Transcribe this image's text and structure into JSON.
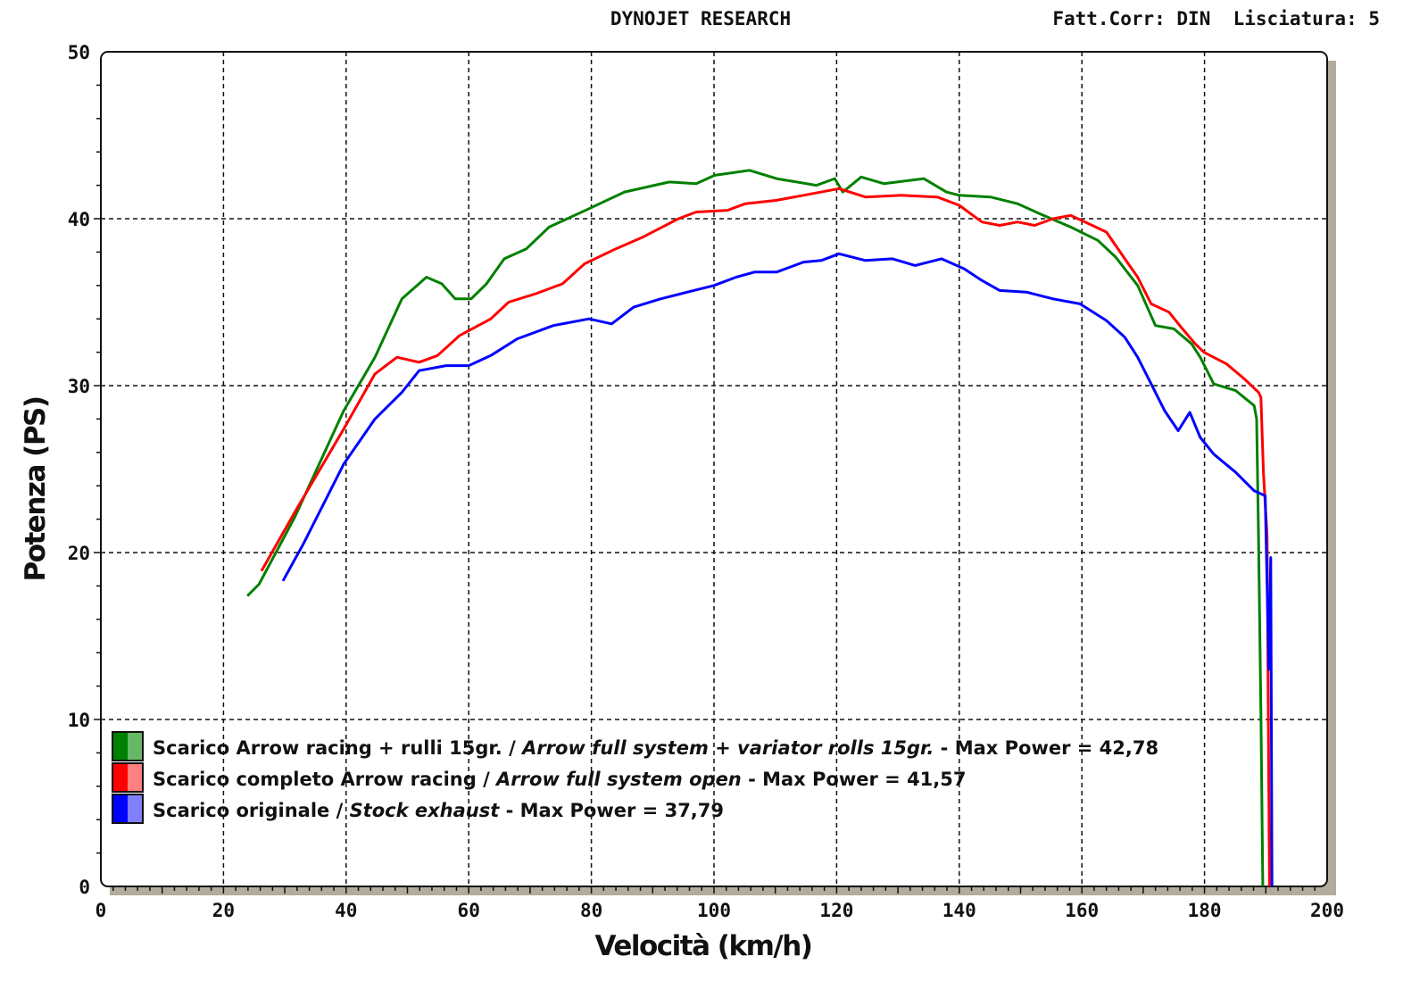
{
  "header": {
    "title": "DYNOJET RESEARCH",
    "settings": "Fatt.Corr: DIN  Lisciatura: 5"
  },
  "chart_data": {
    "type": "line",
    "xlabel": "Velocità (km/h)",
    "ylabel": "Potenza (PS)",
    "xlim": [
      0,
      200
    ],
    "ylim": [
      0,
      50
    ],
    "xticks": [
      "0",
      "20",
      "40",
      "60",
      "80",
      "100",
      "120",
      "140",
      "160",
      "180",
      "200"
    ],
    "yticks": [
      "0",
      "10",
      "20",
      "30",
      "40",
      "50"
    ],
    "grid": true,
    "legend_position": "bottom-left",
    "series": [
      {
        "name_it": "Scarico Arrow racing + rulli 15gr. / ",
        "name_en": "Arrow full system + variator rolls 15gr.",
        "max_label": " - Max Power = 42,78",
        "color": "#008000",
        "color_light": "#66b866",
        "points": [
          [
            23.9,
            17.4
          ],
          [
            25.8,
            18.1
          ],
          [
            31.6,
            22.1
          ],
          [
            39.6,
            28.5
          ],
          [
            44.7,
            31.7
          ],
          [
            49.1,
            35.2
          ],
          [
            53.1,
            36.5
          ],
          [
            55.6,
            36.1
          ],
          [
            57.8,
            35.2
          ],
          [
            60.4,
            35.2
          ],
          [
            62.9,
            36.1
          ],
          [
            65.8,
            37.6
          ],
          [
            69.4,
            38.2
          ],
          [
            73.1,
            39.5
          ],
          [
            79.6,
            40.6
          ],
          [
            85.4,
            41.6
          ],
          [
            92.7,
            42.2
          ],
          [
            97.1,
            42.1
          ],
          [
            100.1,
            42.6
          ],
          [
            105.8,
            42.9
          ],
          [
            110.2,
            42.4
          ],
          [
            116.7,
            42.0
          ],
          [
            119.7,
            42.4
          ],
          [
            121,
            41.6
          ],
          [
            124,
            42.5
          ],
          [
            127.7,
            42.1
          ],
          [
            134.2,
            42.4
          ],
          [
            137.9,
            41.6
          ],
          [
            140,
            41.4
          ],
          [
            145.1,
            41.3
          ],
          [
            149.5,
            40.9
          ],
          [
            153.1,
            40.3
          ],
          [
            158.2,
            39.5
          ],
          [
            162.6,
            38.7
          ],
          [
            165.5,
            37.7
          ],
          [
            169.1,
            36.0
          ],
          [
            172,
            33.6
          ],
          [
            175,
            33.4
          ],
          [
            177.9,
            32.5
          ],
          [
            179.3,
            31.7
          ],
          [
            181.5,
            30.1
          ],
          [
            185.1,
            29.7
          ],
          [
            188.1,
            28.8
          ],
          [
            188.5,
            28.0
          ],
          [
            188.8,
            21.0
          ],
          [
            189.2,
            10.3
          ],
          [
            189.5,
            0
          ]
        ]
      },
      {
        "name_it": "Scarico completo Arrow racing / ",
        "name_en": "Arrow full system open",
        "max_label": " - Max Power = 41,57",
        "color": "#ff0000",
        "color_light": "#ff8080",
        "points": [
          [
            26.2,
            18.9
          ],
          [
            31.6,
            22.4
          ],
          [
            39.6,
            27.4
          ],
          [
            44.7,
            30.7
          ],
          [
            48.3,
            31.7
          ],
          [
            51.9,
            31.4
          ],
          [
            54.9,
            31.8
          ],
          [
            58.5,
            33.0
          ],
          [
            63.6,
            34.0
          ],
          [
            66.5,
            35.0
          ],
          [
            70.9,
            35.5
          ],
          [
            75.3,
            36.1
          ],
          [
            78.9,
            37.3
          ],
          [
            84,
            38.2
          ],
          [
            88.4,
            38.9
          ],
          [
            94.2,
            40.0
          ],
          [
            97.1,
            40.4
          ],
          [
            102.2,
            40.5
          ],
          [
            105.1,
            40.9
          ],
          [
            110.2,
            41.1
          ],
          [
            114.6,
            41.4
          ],
          [
            120.4,
            41.8
          ],
          [
            124.7,
            41.3
          ],
          [
            130.6,
            41.4
          ],
          [
            136.4,
            41.3
          ],
          [
            140,
            40.8
          ],
          [
            143.7,
            39.8
          ],
          [
            146.6,
            39.6
          ],
          [
            149.5,
            39.8
          ],
          [
            152.3,
            39.6
          ],
          [
            155.3,
            40.0
          ],
          [
            158.2,
            40.2
          ],
          [
            161.1,
            39.7
          ],
          [
            164,
            39.2
          ],
          [
            167,
            37.6
          ],
          [
            169.1,
            36.5
          ],
          [
            171.3,
            34.9
          ],
          [
            174.2,
            34.4
          ],
          [
            176.4,
            33.4
          ],
          [
            178.5,
            32.5
          ],
          [
            179.9,
            32.0
          ],
          [
            183.6,
            31.3
          ],
          [
            186.5,
            30.4
          ],
          [
            188.8,
            29.6
          ],
          [
            189.2,
            29.3
          ],
          [
            189.6,
            24.8
          ],
          [
            190.2,
            21.0
          ],
          [
            190.6,
            0
          ]
        ]
      },
      {
        "name_it": "Scarico originale / ",
        "name_en": "Stock exhaust",
        "max_label": " - Max Power = 37,79",
        "color": "#0000ff",
        "color_light": "#8080ff",
        "points": [
          [
            29.7,
            18.3
          ],
          [
            33,
            20.5
          ],
          [
            39.6,
            25.3
          ],
          [
            44.7,
            28.0
          ],
          [
            49.1,
            29.6
          ],
          [
            51.9,
            30.9
          ],
          [
            56.3,
            31.2
          ],
          [
            60,
            31.2
          ],
          [
            63.6,
            31.8
          ],
          [
            67.9,
            32.8
          ],
          [
            73.8,
            33.6
          ],
          [
            79.6,
            34.0
          ],
          [
            83.3,
            33.7
          ],
          [
            86.9,
            34.7
          ],
          [
            91.3,
            35.2
          ],
          [
            95.6,
            35.6
          ],
          [
            100,
            36.0
          ],
          [
            103.6,
            36.5
          ],
          [
            106.6,
            36.8
          ],
          [
            110.2,
            36.8
          ],
          [
            114.6,
            37.4
          ],
          [
            117.5,
            37.5
          ],
          [
            120.4,
            37.9
          ],
          [
            124.7,
            37.5
          ],
          [
            129.1,
            37.6
          ],
          [
            132.8,
            37.2
          ],
          [
            137.1,
            37.6
          ],
          [
            140.8,
            37.0
          ],
          [
            143.7,
            36.3
          ],
          [
            146.6,
            35.7
          ],
          [
            151,
            35.6
          ],
          [
            155.3,
            35.2
          ],
          [
            159.7,
            34.9
          ],
          [
            164,
            33.9
          ],
          [
            167,
            32.9
          ],
          [
            169.1,
            31.7
          ],
          [
            171.3,
            30.1
          ],
          [
            173.5,
            28.5
          ],
          [
            175.7,
            27.3
          ],
          [
            177.6,
            28.4
          ],
          [
            179.3,
            26.9
          ],
          [
            181.5,
            25.9
          ],
          [
            185.1,
            24.8
          ],
          [
            188.1,
            23.7
          ],
          [
            189.9,
            23.4
          ],
          [
            190.5,
            13
          ],
          [
            190.8,
            19.7
          ],
          [
            191,
            0
          ]
        ]
      }
    ]
  }
}
